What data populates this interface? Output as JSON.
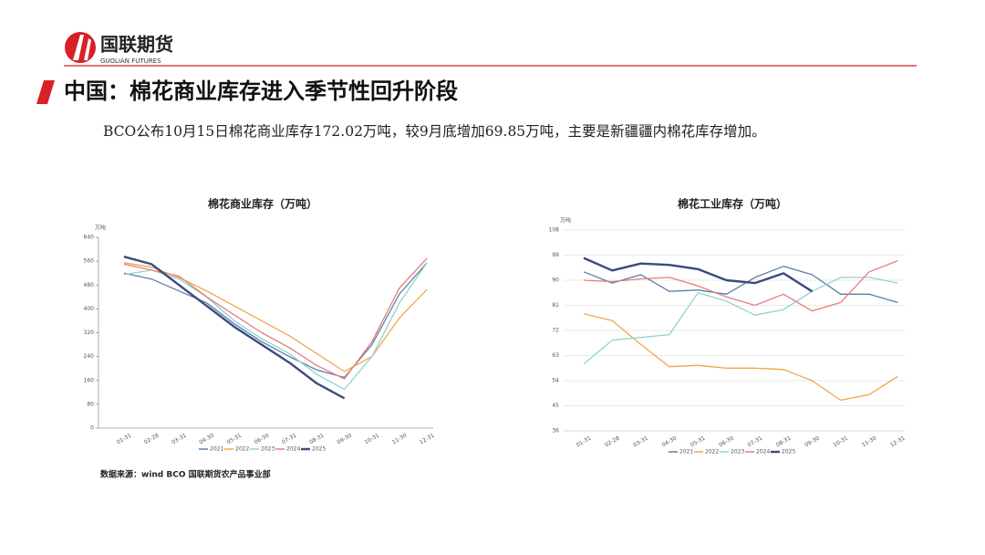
{
  "header": {
    "brand": "国联期货",
    "brand_en": "GUOLIAN FUTURES"
  },
  "title": "中国：棉花商业库存进入季节性回升阶段",
  "text": "BCO公布10月15日棉花商业库存172.02万吨，较9月底增加69.85万吨，主要是新疆疆内棉花库存增加。",
  "source": "数据来源：wind BCO 国联期货农产品事业部",
  "chart_data": [
    {
      "type": "line",
      "title": "棉花商业库存（万吨）",
      "y_label": "万吨",
      "categories": [
        "01-31",
        "02-28",
        "03-31",
        "04-30",
        "05-31",
        "06-30",
        "07-31",
        "08-31",
        "09-30",
        "10-31",
        "11-30",
        "12-31"
      ],
      "ylim": [
        0,
        640
      ],
      "yticks": [
        0,
        80,
        160,
        240,
        320,
        400,
        480,
        560,
        640
      ],
      "grid": false,
      "series": [
        {
          "name": "2021",
          "color": "#5b7ea8",
          "values": [
            520,
            500,
            460,
            420,
            350,
            290,
            240,
            195,
            170,
            280,
            450,
            555
          ]
        },
        {
          "name": "2022",
          "color": "#f0a848",
          "values": [
            555,
            540,
            505,
            460,
            410,
            360,
            310,
            250,
            190,
            240,
            370,
            465
          ]
        },
        {
          "name": "2023",
          "color": "#8fd3d0",
          "values": [
            515,
            530,
            500,
            440,
            360,
            300,
            250,
            180,
            130,
            240,
            420,
            555
          ]
        },
        {
          "name": "2024",
          "color": "#e87c7c",
          "values": [
            550,
            530,
            510,
            440,
            380,
            320,
            270,
            210,
            165,
            290,
            470,
            570
          ]
        },
        {
          "name": "2025",
          "color": "#3c4a7c",
          "values": [
            575,
            550,
            480,
            410,
            340,
            280,
            220,
            150,
            100,
            null,
            null,
            null
          ]
        }
      ]
    },
    {
      "type": "line",
      "title": "棉花工业库存（万吨）",
      "y_label": "万吨",
      "categories": [
        "01-31",
        "02-28",
        "03-31",
        "04-30",
        "05-31",
        "06-30",
        "07-31",
        "08-31",
        "09-30",
        "10-31",
        "11-30",
        "12-31"
      ],
      "ylim": [
        36,
        108
      ],
      "yticks": [
        36,
        45,
        54,
        63,
        72,
        81,
        90,
        99,
        108
      ],
      "grid": true,
      "series": [
        {
          "name": "2021",
          "color": "#5b7ea8",
          "values": [
            93,
            89,
            92,
            86,
            86.5,
            85,
            91,
            95,
            92,
            85,
            85,
            82
          ]
        },
        {
          "name": "2022",
          "color": "#f0a848",
          "values": [
            78,
            75.5,
            67,
            59,
            59.5,
            58.5,
            58.5,
            58,
            54,
            47,
            49,
            55.5
          ]
        },
        {
          "name": "2023",
          "color": "#8fd3d0",
          "values": [
            60,
            68.5,
            69.5,
            70.5,
            85.5,
            82.5,
            77.5,
            79.5,
            86,
            91,
            91,
            89
          ]
        },
        {
          "name": "2024",
          "color": "#e87c7c",
          "values": [
            90,
            89.5,
            90.5,
            91,
            88,
            84,
            81,
            85,
            79,
            82,
            93,
            97
          ]
        },
        {
          "name": "2025",
          "color": "#3c4a7c",
          "values": [
            98,
            93.5,
            96,
            95.5,
            94,
            90,
            89,
            92.5,
            86,
            null,
            null,
            null
          ]
        }
      ]
    }
  ]
}
